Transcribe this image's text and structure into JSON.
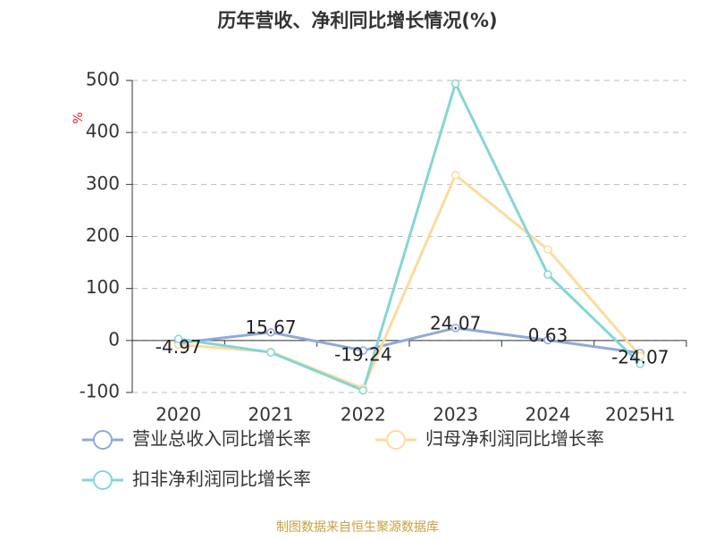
{
  "chart_data": {
    "type": "line",
    "title": "历年营收、净利同比增长情况(%)",
    "y_unit": "%",
    "source": "制图数据来自恒生聚源数据库",
    "categories": [
      "2020",
      "2021",
      "2022",
      "2023",
      "2024",
      "2025H1"
    ],
    "series": [
      {
        "name": "营业总收入同比增长率",
        "color": "#8eaad8",
        "values": [
          -4.97,
          15.67,
          -19.24,
          24.07,
          0.63,
          -24.07
        ],
        "show_labels": true
      },
      {
        "name": "归母净利润同比增长率",
        "color": "#fddb9c",
        "values": [
          -8,
          -22,
          -92,
          318,
          175,
          -30
        ]
      },
      {
        "name": "扣非净利润同比增长率",
        "color": "#84d6d6",
        "values": [
          3,
          -23,
          -96,
          494,
          127,
          -45
        ]
      }
    ],
    "ylim": [
      -100,
      500
    ],
    "yticks": [
      -100,
      0,
      100,
      200,
      300,
      400,
      500
    ],
    "grid": true
  }
}
